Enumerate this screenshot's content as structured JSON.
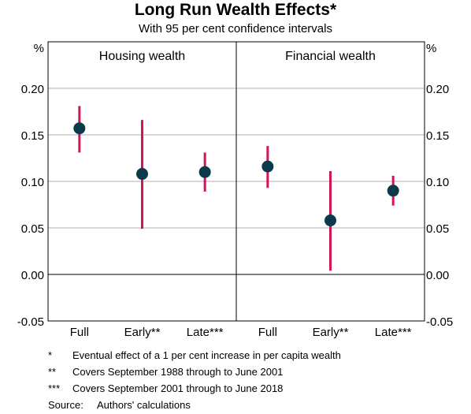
{
  "title": "Long Run Wealth Effects*",
  "subtitle": "With 95 per cent confidence intervals",
  "chart_data": {
    "type": "scatter",
    "left_axis_unit": "%",
    "right_axis_unit": "%",
    "ylim": [
      -0.05,
      0.25
    ],
    "y_ticks": [
      "0.20",
      "0.15",
      "0.10",
      "0.05",
      "0.00",
      "-0.05"
    ],
    "categories": [
      "Full",
      "Early**",
      "Late***"
    ],
    "grid": true,
    "colors": {
      "point": "#0d3a4b",
      "interval": "#d4145a",
      "grid": "#b0b0b0"
    },
    "panels": [
      {
        "title": "Housing wealth",
        "points": [
          {
            "x": "Full",
            "y": 0.157,
            "low": 0.131,
            "high": 0.181
          },
          {
            "x": "Early**",
            "y": 0.108,
            "low": 0.049,
            "high": 0.166
          },
          {
            "x": "Late***",
            "y": 0.11,
            "low": 0.089,
            "high": 0.131
          }
        ]
      },
      {
        "title": "Financial wealth",
        "points": [
          {
            "x": "Full",
            "y": 0.116,
            "low": 0.093,
            "high": 0.138
          },
          {
            "x": "Early**",
            "y": 0.058,
            "low": 0.004,
            "high": 0.111
          },
          {
            "x": "Late***",
            "y": 0.09,
            "low": 0.074,
            "high": 0.106
          }
        ]
      }
    ]
  },
  "notes": [
    {
      "marker": "*",
      "text": "Eventual effect of a 1 per cent increase in per capita wealth"
    },
    {
      "marker": "**",
      "text": "Covers September 1988 through to June 2001"
    },
    {
      "marker": "***",
      "text": "Covers September 2001 through to June 2018"
    }
  ],
  "source": {
    "label": "Source:",
    "text": "Authors' calculations"
  }
}
